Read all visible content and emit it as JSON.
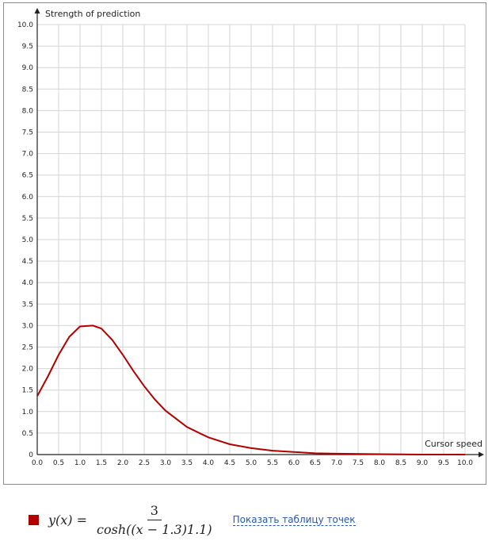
{
  "chart_data": {
    "type": "line",
    "title": "",
    "xlabel": "Cursor speed",
    "ylabel": "Strength of prediction",
    "xlim": [
      0,
      10
    ],
    "ylim": [
      0,
      10
    ],
    "x_ticks": [
      "0.0",
      "0.5",
      "1.0",
      "1.5",
      "2.0",
      "2.5",
      "3.0",
      "3.5",
      "4.0",
      "4.5",
      "5.0",
      "5.5",
      "6.0",
      "6.5",
      "7.0",
      "7.5",
      "8.0",
      "8.5",
      "9.0",
      "9.5",
      "10.0"
    ],
    "y_ticks": [
      "0",
      "0.5",
      "1.0",
      "1.5",
      "2.0",
      "2.5",
      "3.0",
      "3.5",
      "4.0",
      "4.5",
      "5.0",
      "5.5",
      "6.0",
      "6.5",
      "7.0",
      "7.5",
      "8.0",
      "8.5",
      "9.0",
      "9.5",
      "10.0"
    ],
    "grid": true,
    "series": [
      {
        "color": "#b00000",
        "x": [
          0.0,
          0.25,
          0.5,
          0.75,
          1.0,
          1.3,
          1.5,
          1.75,
          2.0,
          2.25,
          2.5,
          2.75,
          3.0,
          3.5,
          4.0,
          4.5,
          5.0,
          5.5,
          6.0,
          6.5,
          7.0,
          8.0,
          9.0,
          10.0
        ],
        "y": [
          1.36,
          1.82,
          2.32,
          2.74,
          2.98,
          3.0,
          2.93,
          2.67,
          2.32,
          1.94,
          1.59,
          1.28,
          1.02,
          0.64,
          0.4,
          0.24,
          0.15,
          0.09,
          0.06,
          0.03,
          0.02,
          0.01,
          0.0,
          0.0
        ]
      }
    ]
  },
  "legend": {
    "swatch_color": "#b00000",
    "formula_lhs": "y(x) =",
    "formula_numerator": "3",
    "formula_denominator": "cosh((x − 1.3)1.1)",
    "table_link": "Показать таблицу точек"
  }
}
